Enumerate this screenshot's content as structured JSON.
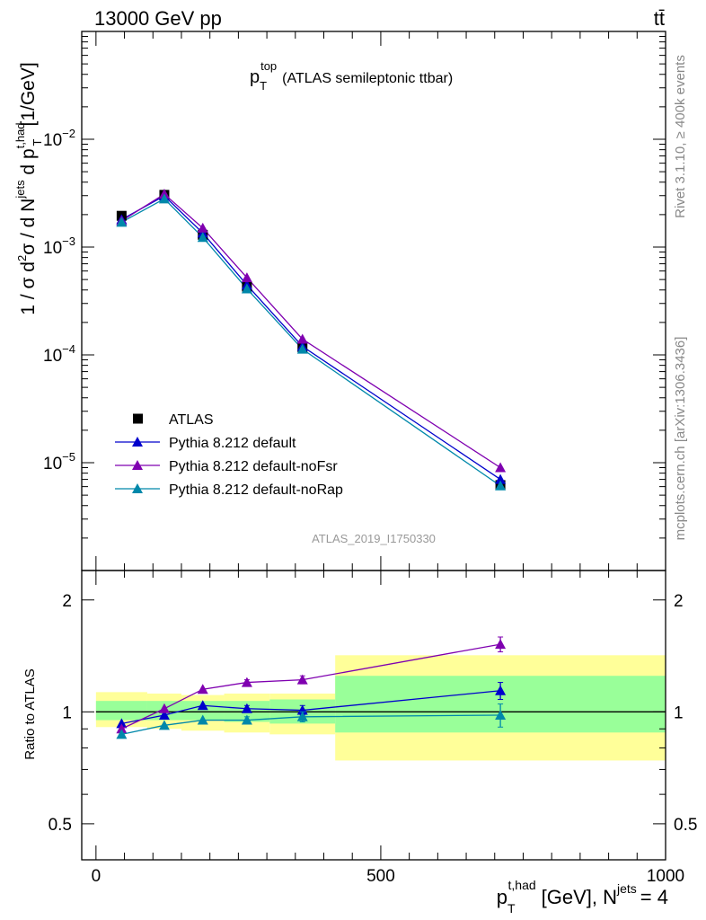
{
  "header": {
    "beam_label": "13000 GeV pp",
    "process_label": "tt̄",
    "side_rivet": "Rivet 3.1.10, ≥ 400k events",
    "side_mcplots": "mcplots.cern.ch [arXiv:1306.3436]",
    "analysis_id": "ATLAS_2019_I1750330"
  },
  "chart_data": [
    {
      "type": "line",
      "scale": "log",
      "title_main": "p",
      "title_sub": "T",
      "title_sup": "top",
      "title_rest": "(ATLAS semileptonic ttbar)",
      "ylabel": "1 / σ d²σ / d N^jets d p_T^t,had [1/GeV]",
      "ylim": [
        1e-06,
        0.1
      ],
      "y_ticks": [
        {
          "value": 1e-05,
          "base": "10",
          "exp": "−5"
        },
        {
          "value": 0.0001,
          "base": "10",
          "exp": "−4"
        },
        {
          "value": 0.001,
          "base": "10",
          "exp": "−3"
        },
        {
          "value": 0.01,
          "base": "10",
          "exp": "−2"
        }
      ],
      "xlim": [
        -25,
        1000
      ],
      "x": [
        45,
        120,
        187.5,
        265,
        362.5,
        710
      ],
      "bin_edges": [
        0,
        90,
        150,
        225,
        305,
        420,
        1000
      ],
      "series": [
        {
          "name": "ATLAS",
          "marker": "square",
          "color": "#000000",
          "values": [
            0.00195,
            0.00305,
            0.0013,
            0.00043,
            0.000118,
            6.2e-06
          ]
        },
        {
          "name": "Pythia 8.212 default",
          "marker": "triangle",
          "color": "#0000cc",
          "values": [
            0.0018,
            0.00298,
            0.00135,
            0.000445,
            0.00012,
            7e-06
          ]
        },
        {
          "name": "Pythia 8.212 default-noFsr",
          "marker": "triangle",
          "color": "#7f00b0",
          "values": [
            0.00175,
            0.0031,
            0.0015,
            0.00052,
            0.00014,
            9e-06
          ]
        },
        {
          "name": "Pythia 8.212 default-noRap",
          "marker": "triangle",
          "color": "#0088aa",
          "values": [
            0.0017,
            0.0028,
            0.00123,
            0.00041,
            0.000113,
            6.1e-06
          ]
        }
      ]
    },
    {
      "type": "line",
      "ylabel": "Ratio to ATLAS",
      "ylim": [
        0.4,
        2.4
      ],
      "y_ticks": [
        {
          "value": 0.5,
          "label": "0.5"
        },
        {
          "value": 1,
          "label": "1"
        },
        {
          "value": 2,
          "label": "2"
        }
      ],
      "xlim": [
        -25,
        1000
      ],
      "x_ticks": [
        {
          "value": 0,
          "label": "0"
        },
        {
          "value": 500,
          "label": "500"
        },
        {
          "value": 1000,
          "label": "1000"
        }
      ],
      "xlabel_main": "p",
      "xlabel_sub": "T",
      "xlabel_sup": "t,had",
      "xlabel_rest": "[GeV], N",
      "xlabel_sup2": "jets",
      "xlabel_end": "= 4",
      "x": [
        45,
        120,
        187.5,
        265,
        362.5,
        710
      ],
      "bin_edges": [
        0,
        90,
        150,
        225,
        305,
        420,
        1000
      ],
      "bands": {
        "yellow_low": [
          0.91,
          0.9,
          0.89,
          0.88,
          0.87,
          0.74
        ],
        "yellow_high": [
          1.13,
          1.12,
          1.11,
          1.12,
          1.12,
          1.42
        ],
        "green_low": [
          0.95,
          0.95,
          0.95,
          0.94,
          0.93,
          0.88
        ],
        "green_high": [
          1.07,
          1.07,
          1.07,
          1.07,
          1.08,
          1.25
        ]
      },
      "series": [
        {
          "name": "Pythia 8.212 default",
          "color": "#0000cc",
          "values": [
            0.93,
            0.98,
            1.04,
            1.02,
            1.01,
            1.14
          ],
          "err": [
            0.01,
            0.01,
            0.01,
            0.02,
            0.03,
            0.06
          ]
        },
        {
          "name": "Pythia 8.212 default-noFsr",
          "color": "#7f00b0",
          "values": [
            0.9,
            1.02,
            1.15,
            1.2,
            1.22,
            1.52
          ],
          "err": [
            0.01,
            0.01,
            0.01,
            0.02,
            0.03,
            0.07
          ]
        },
        {
          "name": "Pythia 8.212 default-noRap",
          "color": "#0088aa",
          "values": [
            0.87,
            0.92,
            0.95,
            0.95,
            0.97,
            0.98
          ],
          "err": [
            0.01,
            0.01,
            0.01,
            0.02,
            0.03,
            0.07
          ]
        }
      ]
    }
  ]
}
